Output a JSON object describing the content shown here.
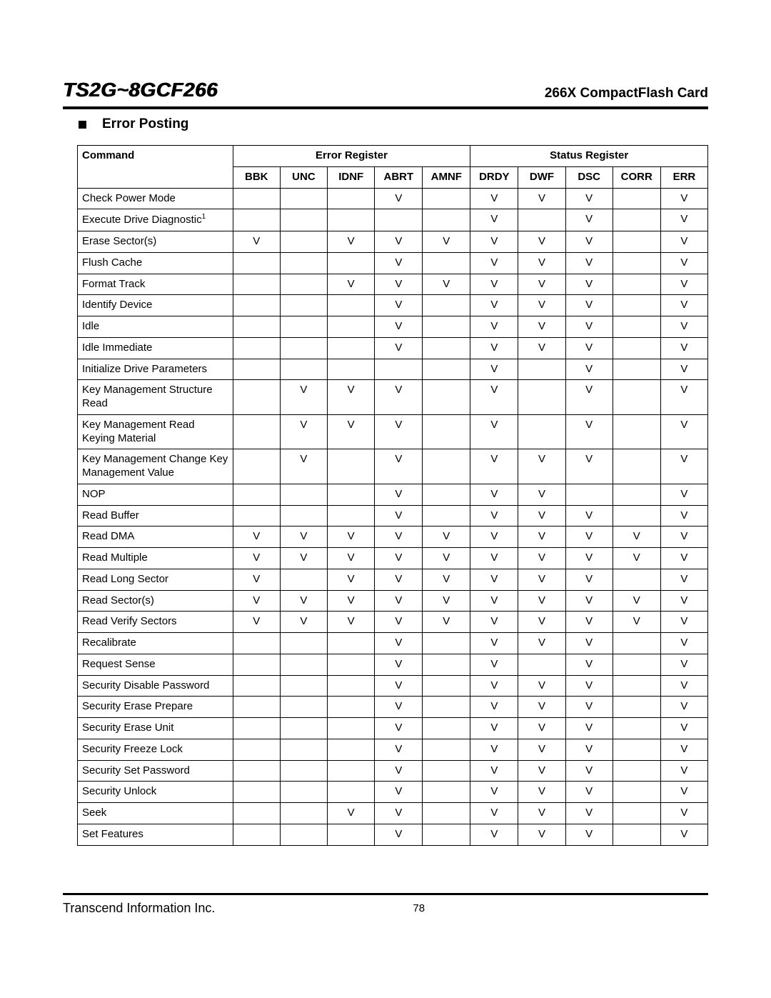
{
  "header": {
    "left": "TS2G~8GCF266",
    "right": "266X CompactFlash Card"
  },
  "section_title": "Error Posting",
  "table": {
    "group_headers": [
      "Command",
      "Error Register",
      "Status Register"
    ],
    "sub_headers": [
      "BBK",
      "UNC",
      "IDNF",
      "ABRT",
      "AMNF",
      "DRDY",
      "DWF",
      "DSC",
      "CORR",
      "ERR"
    ],
    "mark": "V",
    "rows": [
      {
        "cmd": "Check Power Mode",
        "v": [
          "",
          "",
          "",
          "V",
          "",
          "V",
          "V",
          "V",
          "",
          "V"
        ]
      },
      {
        "cmd": "Execute Drive Diagnostic",
        "sup": "1",
        "v": [
          "",
          "",
          "",
          "",
          "",
          "V",
          "",
          "V",
          "",
          "V"
        ]
      },
      {
        "cmd": "Erase Sector(s)",
        "v": [
          "V",
          "",
          "V",
          "V",
          "V",
          "V",
          "V",
          "V",
          "",
          "V"
        ]
      },
      {
        "cmd": "Flush Cache",
        "v": [
          "",
          "",
          "",
          "V",
          "",
          "V",
          "V",
          "V",
          "",
          "V"
        ]
      },
      {
        "cmd": "Format Track",
        "v": [
          "",
          "",
          "V",
          "V",
          "V",
          "V",
          "V",
          "V",
          "",
          "V"
        ]
      },
      {
        "cmd": "Identify Device",
        "v": [
          "",
          "",
          "",
          "V",
          "",
          "V",
          "V",
          "V",
          "",
          "V"
        ]
      },
      {
        "cmd": "Idle",
        "v": [
          "",
          "",
          "",
          "V",
          "",
          "V",
          "V",
          "V",
          "",
          "V"
        ]
      },
      {
        "cmd": "Idle Immediate",
        "v": [
          "",
          "",
          "",
          "V",
          "",
          "V",
          "V",
          "V",
          "",
          "V"
        ]
      },
      {
        "cmd": "Initialize Drive Parameters",
        "v": [
          "",
          "",
          "",
          "",
          "",
          "V",
          "",
          "V",
          "",
          "V"
        ]
      },
      {
        "cmd": "Key Management Structure Read",
        "v": [
          "",
          "V",
          "V",
          "V",
          "",
          "V",
          "",
          "V",
          "",
          "V"
        ]
      },
      {
        "cmd": "Key Management Read Keying Material",
        "v": [
          "",
          "V",
          "V",
          "V",
          "",
          "V",
          "",
          "V",
          "",
          "V"
        ]
      },
      {
        "cmd": "Key Management Change Key Management Value",
        "v": [
          "",
          "V",
          "",
          "V",
          "",
          "V",
          "V",
          "V",
          "",
          "V"
        ]
      },
      {
        "cmd": "NOP",
        "v": [
          "",
          "",
          "",
          "V",
          "",
          "V",
          "V",
          "",
          "",
          "V"
        ]
      },
      {
        "cmd": "Read Buffer",
        "v": [
          "",
          "",
          "",
          "V",
          "",
          "V",
          "V",
          "V",
          "",
          "V"
        ]
      },
      {
        "cmd": "Read DMA",
        "v": [
          "V",
          "V",
          "V",
          "V",
          "V",
          "V",
          "V",
          "V",
          "V",
          "V"
        ]
      },
      {
        "cmd": "Read Multiple",
        "v": [
          "V",
          "V",
          "V",
          "V",
          "V",
          "V",
          "V",
          "V",
          "V",
          "V"
        ]
      },
      {
        "cmd": "Read Long Sector",
        "v": [
          "V",
          "",
          "V",
          "V",
          "V",
          "V",
          "V",
          "V",
          "",
          "V"
        ]
      },
      {
        "cmd": "Read Sector(s)",
        "v": [
          "V",
          "V",
          "V",
          "V",
          "V",
          "V",
          "V",
          "V",
          "V",
          "V"
        ]
      },
      {
        "cmd": "Read Verify Sectors",
        "v": [
          "V",
          "V",
          "V",
          "V",
          "V",
          "V",
          "V",
          "V",
          "V",
          "V"
        ]
      },
      {
        "cmd": "Recalibrate",
        "v": [
          "",
          "",
          "",
          "V",
          "",
          "V",
          "V",
          "V",
          "",
          "V"
        ]
      },
      {
        "cmd": "Request Sense",
        "v": [
          "",
          "",
          "",
          "V",
          "",
          "V",
          "",
          "V",
          "",
          "V"
        ]
      },
      {
        "cmd": "Security Disable Password",
        "v": [
          "",
          "",
          "",
          "V",
          "",
          "V",
          "V",
          "V",
          "",
          "V"
        ]
      },
      {
        "cmd": "Security Erase Prepare",
        "v": [
          "",
          "",
          "",
          "V",
          "",
          "V",
          "V",
          "V",
          "",
          "V"
        ]
      },
      {
        "cmd": "Security Erase Unit",
        "v": [
          "",
          "",
          "",
          "V",
          "",
          "V",
          "V",
          "V",
          "",
          "V"
        ]
      },
      {
        "cmd": "Security Freeze Lock",
        "v": [
          "",
          "",
          "",
          "V",
          "",
          "V",
          "V",
          "V",
          "",
          "V"
        ]
      },
      {
        "cmd": "Security Set Password",
        "v": [
          "",
          "",
          "",
          "V",
          "",
          "V",
          "V",
          "V",
          "",
          "V"
        ]
      },
      {
        "cmd": "Security Unlock",
        "v": [
          "",
          "",
          "",
          "V",
          "",
          "V",
          "V",
          "V",
          "",
          "V"
        ]
      },
      {
        "cmd": "Seek",
        "v": [
          "",
          "",
          "V",
          "V",
          "",
          "V",
          "V",
          "V",
          "",
          "V"
        ]
      },
      {
        "cmd": "Set Features",
        "v": [
          "",
          "",
          "",
          "V",
          "",
          "V",
          "V",
          "V",
          "",
          "V"
        ]
      }
    ]
  },
  "footer": {
    "company": "Transcend Information Inc.",
    "page_number": "78"
  }
}
